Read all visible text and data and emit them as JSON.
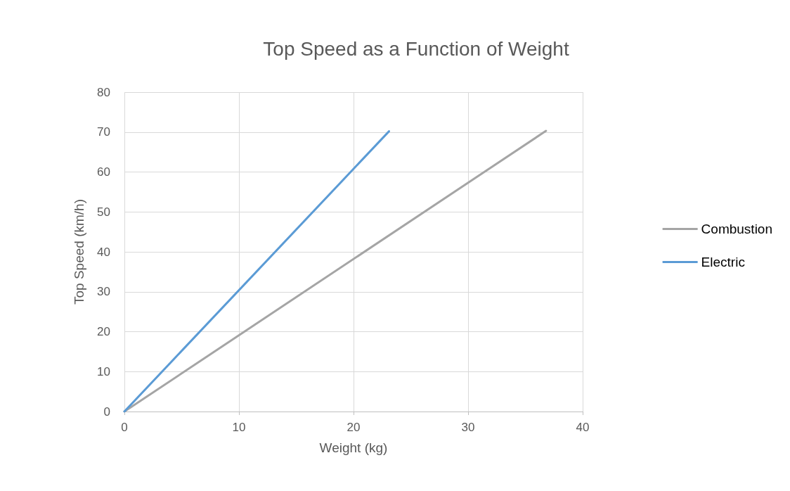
{
  "chart_data": {
    "type": "line",
    "title": "Top Speed as a Function of Weight",
    "xlabel": "Weight (kg)",
    "ylabel": "Top Speed (km/h)",
    "series": [
      {
        "name": "Combustion",
        "color": "#a5a5a5",
        "x": [
          0,
          36.8
        ],
        "values": [
          0,
          70.3
        ]
      },
      {
        "name": "Electric",
        "color": "#5b9bd5",
        "x": [
          0,
          23.1
        ],
        "values": [
          0,
          70.2
        ]
      }
    ],
    "xlim": [
      0,
      40
    ],
    "xticks": [
      0,
      10,
      20,
      30,
      40
    ],
    "ylim": [
      0,
      80
    ],
    "yticks": [
      0,
      10,
      20,
      30,
      40,
      50,
      60,
      70,
      80
    ],
    "grid": true,
    "legend": "right",
    "marker": "none",
    "line_style": "solid"
  }
}
